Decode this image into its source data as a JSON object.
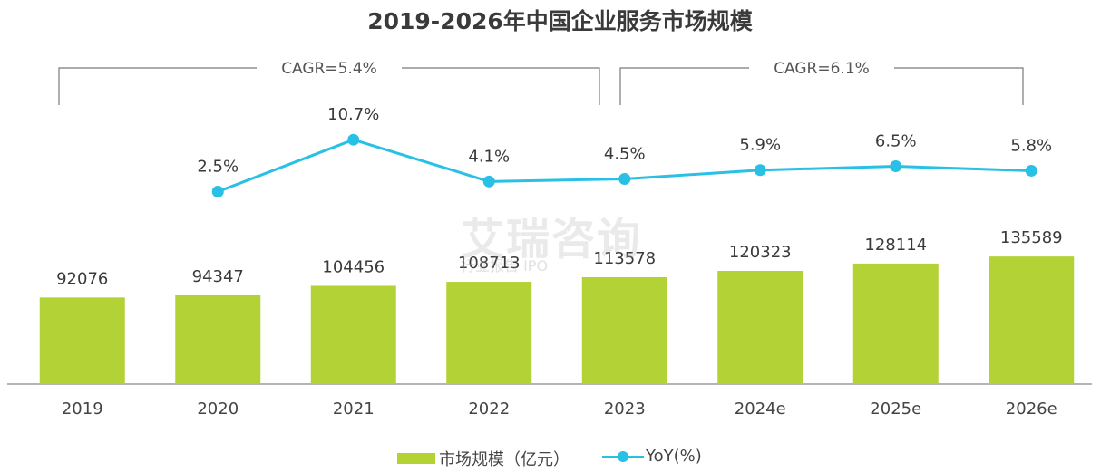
{
  "chart_data": {
    "type": "bar",
    "title": "2019-2026年中国企业服务市场规模",
    "categories": [
      "2019",
      "2020",
      "2021",
      "2022",
      "2023",
      "2024e",
      "2025e",
      "2026e"
    ],
    "series": [
      {
        "name": "市场规模（亿元）",
        "type": "bar",
        "values": [
          92076,
          94347,
          104456,
          108713,
          113578,
          120323,
          128114,
          135589
        ]
      },
      {
        "name": "YoY(%)",
        "type": "line",
        "values": [
          null,
          2.5,
          10.7,
          4.1,
          4.5,
          5.9,
          6.5,
          5.8
        ],
        "labels": [
          "",
          "2.5%",
          "10.7%",
          "4.1%",
          "4.5%",
          "5.9%",
          "6.5%",
          "5.8%"
        ]
      }
    ],
    "annotations": [
      {
        "text": "CAGR=5.4%",
        "from": "2019",
        "to": "2023"
      },
      {
        "text": "CAGR=6.1%",
        "from": "2023",
        "to": "2026e"
      }
    ],
    "legend": "bottom",
    "grid": false
  },
  "colors": {
    "bar": "#b2d235",
    "line": "#29c0e6",
    "axis": "#888888",
    "bracket": "#7a7a7a"
  },
  "watermark": {
    "main": "艾瑞咨询",
    "sub": "行业报告 IPO"
  }
}
